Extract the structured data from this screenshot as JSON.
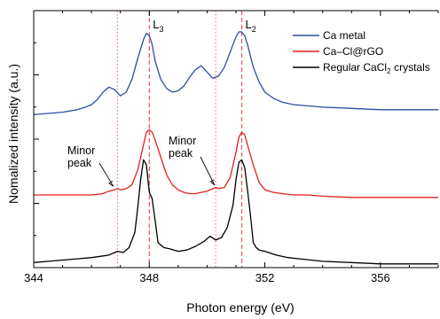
{
  "chart_data": {
    "type": "line",
    "xlabel": "Photon energy (eV)",
    "ylabel": "Nomalized intensity (a.u.)",
    "xlim": [
      344,
      358
    ],
    "xticks": [
      "344",
      "348",
      "352",
      "356"
    ],
    "y_ticks_labeled": false,
    "grid": false,
    "legend_position": "top-right",
    "legend": [
      {
        "label": "Ca metal",
        "color": "#2b4ea0"
      },
      {
        "label": "Ca–Cl@rGO",
        "color": "#e3211c"
      },
      {
        "label": "Regular CaCl₂ crystals",
        "color": "#000000"
      }
    ],
    "reference_lines": [
      {
        "x": 348.0,
        "label_main": "L",
        "label_sub": "3",
        "color": "#e05a5a",
        "style": "dashed"
      },
      {
        "x": 351.2,
        "label_main": "L",
        "label_sub": "2",
        "color": "#e05a5a",
        "style": "dashed"
      },
      {
        "x": 346.9,
        "label_main": "",
        "label_sub": "",
        "color": "#f08080",
        "style": "dotted"
      },
      {
        "x": 350.3,
        "label_main": "",
        "label_sub": "",
        "color": "#f08080",
        "style": "dotted"
      }
    ],
    "annotations": [
      {
        "text_lines": [
          "Minor",
          "peak"
        ],
        "arrow_to": [
          346.85,
          0.62
        ]
      },
      {
        "text_lines": [
          "Minor",
          "peak"
        ],
        "arrow_to": [
          350.35,
          0.63
        ]
      }
    ],
    "series": [
      {
        "name": "Ca metal",
        "color": "#2b4ea0",
        "x": [
          344.0,
          344.5,
          345.0,
          345.5,
          345.8,
          346.0,
          346.2,
          346.4,
          346.6,
          346.8,
          347.0,
          347.2,
          347.4,
          347.6,
          347.8,
          347.9,
          348.0,
          348.1,
          348.2,
          348.4,
          348.6,
          348.8,
          349.0,
          349.2,
          349.4,
          349.6,
          349.8,
          350.0,
          350.2,
          350.4,
          350.6,
          350.8,
          351.0,
          351.1,
          351.2,
          351.3,
          351.4,
          351.6,
          351.8,
          352.0,
          352.3,
          352.6,
          353.0,
          353.5,
          354.0,
          355.0,
          356.0,
          357.0,
          358.0
        ],
        "y": [
          1.22,
          1.23,
          1.24,
          1.26,
          1.28,
          1.3,
          1.34,
          1.4,
          1.44,
          1.42,
          1.37,
          1.4,
          1.5,
          1.67,
          1.82,
          1.87,
          1.85,
          1.78,
          1.65,
          1.5,
          1.43,
          1.4,
          1.41,
          1.45,
          1.52,
          1.58,
          1.61,
          1.56,
          1.51,
          1.53,
          1.6,
          1.72,
          1.84,
          1.88,
          1.88,
          1.85,
          1.78,
          1.6,
          1.48,
          1.4,
          1.35,
          1.32,
          1.3,
          1.29,
          1.28,
          1.27,
          1.26,
          1.26,
          1.26
        ]
      },
      {
        "name": "Ca–Cl@rGO",
        "color": "#e3211c",
        "x": [
          344.0,
          344.5,
          345.0,
          345.5,
          346.0,
          346.4,
          346.6,
          346.8,
          346.9,
          347.0,
          347.2,
          347.4,
          347.6,
          347.8,
          347.9,
          348.0,
          348.1,
          348.2,
          348.4,
          348.6,
          348.8,
          349.0,
          349.2,
          349.4,
          349.6,
          349.8,
          350.0,
          350.2,
          350.3,
          350.4,
          350.6,
          350.8,
          351.0,
          351.1,
          351.2,
          351.3,
          351.4,
          351.6,
          351.8,
          352.0,
          352.3,
          352.6,
          353.0,
          353.5,
          354.0,
          355.0,
          356.0,
          357.0,
          358.0
        ],
        "y": [
          0.58,
          0.58,
          0.58,
          0.58,
          0.58,
          0.59,
          0.61,
          0.62,
          0.63,
          0.62,
          0.63,
          0.66,
          0.78,
          0.98,
          1.08,
          1.1,
          1.08,
          1.02,
          0.88,
          0.74,
          0.66,
          0.62,
          0.6,
          0.59,
          0.59,
          0.6,
          0.61,
          0.63,
          0.64,
          0.63,
          0.64,
          0.72,
          0.92,
          1.04,
          1.08,
          1.06,
          0.98,
          0.82,
          0.68,
          0.62,
          0.6,
          0.59,
          0.58,
          0.58,
          0.57,
          0.56,
          0.56,
          0.56,
          0.56
        ]
      },
      {
        "name": "Regular CaCl₂ crystals",
        "color": "#000000",
        "x": [
          344.0,
          344.5,
          345.0,
          345.5,
          346.0,
          346.3,
          346.6,
          346.9,
          347.1,
          347.3,
          347.5,
          347.6,
          347.7,
          347.8,
          347.9,
          348.0,
          348.1,
          348.2,
          348.3,
          348.5,
          348.7,
          349.0,
          349.3,
          349.6,
          349.9,
          350.1,
          350.3,
          350.5,
          350.7,
          350.9,
          351.0,
          351.1,
          351.2,
          351.3,
          351.4,
          351.5,
          351.6,
          351.7,
          351.8,
          352.0,
          352.4,
          352.8,
          353.2,
          353.6,
          354.0,
          355.0,
          356.0,
          357.0,
          358.0
        ],
        "y": [
          0.04,
          0.05,
          0.06,
          0.07,
          0.08,
          0.09,
          0.1,
          0.13,
          0.12,
          0.16,
          0.28,
          0.48,
          0.7,
          0.86,
          0.82,
          0.6,
          0.55,
          0.38,
          0.2,
          0.16,
          0.15,
          0.13,
          0.14,
          0.17,
          0.21,
          0.25,
          0.22,
          0.24,
          0.32,
          0.5,
          0.7,
          0.84,
          0.86,
          0.8,
          0.62,
          0.42,
          0.2,
          0.16,
          0.14,
          0.13,
          0.1,
          0.08,
          0.07,
          0.06,
          0.05,
          0.04,
          0.03,
          0.03,
          0.03
        ]
      }
    ]
  }
}
